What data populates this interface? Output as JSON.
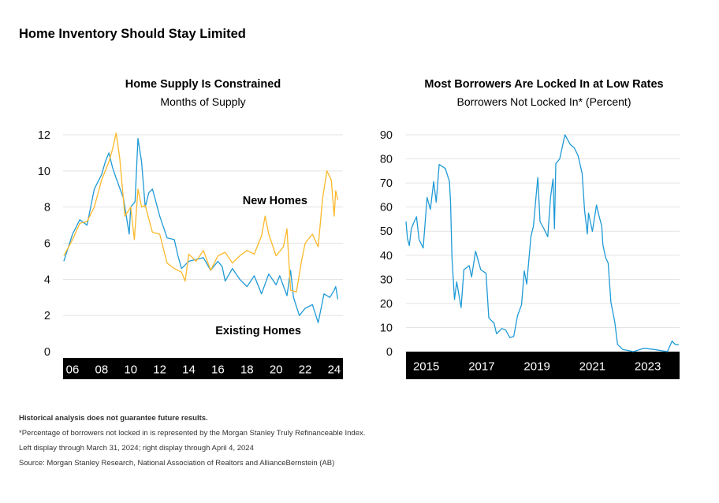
{
  "title": "Home Inventory Should Stay Limited",
  "colors": {
    "existing": "#1f9ad6",
    "new": "#fbb829",
    "axis_band": "#000000",
    "grid": "#e3e3e3"
  },
  "chart_data": [
    {
      "type": "line",
      "title": "Home Supply Is Constrained",
      "subtitle": "Months of Supply",
      "xlabel": "",
      "ylabel": "",
      "ylim": [
        0,
        12
      ],
      "xlim": [
        2005.35,
        2024.6
      ],
      "yticks": [
        "0",
        "2",
        "4",
        "6",
        "8",
        "10",
        "12"
      ],
      "xticks": [
        {
          "year": 2006,
          "label": "06"
        },
        {
          "year": 2008,
          "label": "08"
        },
        {
          "year": 2010,
          "label": "10"
        },
        {
          "year": 2012,
          "label": "12"
        },
        {
          "year": 2014,
          "label": "14"
        },
        {
          "year": 2016,
          "label": "16"
        },
        {
          "year": 2018,
          "label": "18"
        },
        {
          "year": 2020,
          "label": "20"
        },
        {
          "year": 2022,
          "label": "22"
        },
        {
          "year": 2024,
          "label": "24"
        }
      ],
      "grid": true,
      "annotations": [
        "New Homes",
        "Existing Homes"
      ],
      "series": [
        {
          "name": "Existing Homes",
          "color": "#1f9ad6",
          "x": [
            2005.4,
            2006,
            2006.5,
            2007,
            2007.5,
            2008,
            2008.25,
            2008.5,
            2008.75,
            2009,
            2009.5,
            2009.9,
            2010,
            2010.3,
            2010.5,
            2010.75,
            2011,
            2011.25,
            2011.5,
            2012,
            2012.5,
            2013,
            2013.25,
            2013.5,
            2014,
            2014.5,
            2015,
            2015.5,
            2016,
            2016.3,
            2016.5,
            2017,
            2017.5,
            2018,
            2018.5,
            2019,
            2019.5,
            2020,
            2020.25,
            2020.75,
            2021.0,
            2021.2,
            2021.6,
            2022,
            2022.5,
            2022.9,
            2023.3,
            2023.7,
            2024,
            2024.1,
            2024.25
          ],
          "y": [
            5.0,
            6.5,
            7.3,
            7.0,
            9.0,
            9.8,
            10.5,
            11.0,
            10.2,
            9.6,
            8.5,
            6.5,
            8.0,
            8.3,
            11.8,
            10.5,
            8.0,
            8.8,
            9.0,
            7.5,
            6.3,
            6.2,
            5.3,
            4.6,
            5.0,
            5.1,
            5.2,
            4.5,
            5.0,
            4.7,
            3.9,
            4.6,
            4.0,
            3.6,
            4.2,
            3.2,
            4.3,
            3.7,
            4.2,
            3.1,
            4.5,
            3.0,
            2.0,
            2.4,
            2.6,
            1.6,
            3.2,
            3.0,
            3.4,
            3.6,
            2.9
          ]
        },
        {
          "name": "New Homes",
          "color": "#fbb829",
          "x": [
            2005.4,
            2006,
            2006.5,
            2007,
            2007.5,
            2008,
            2008.5,
            2008.75,
            2009,
            2009.25,
            2009.6,
            2010,
            2010.25,
            2010.5,
            2010.75,
            2011,
            2011.5,
            2012,
            2012.5,
            2013,
            2013.5,
            2013.75,
            2014,
            2014.5,
            2015,
            2015.5,
            2016,
            2016.5,
            2017,
            2017.5,
            2018,
            2018.5,
            2019,
            2019.25,
            2019.5,
            2020,
            2020.5,
            2020.75,
            2021.0,
            2021.4,
            2021.75,
            2022,
            2022.5,
            2022.9,
            2023.2,
            2023.5,
            2023.8,
            2024,
            2024.1,
            2024.25
          ],
          "y": [
            5.3,
            6.2,
            7.1,
            7.2,
            8.0,
            9.5,
            10.5,
            11.2,
            12.1,
            10.7,
            7.5,
            8.0,
            6.2,
            9.0,
            8.0,
            8.1,
            6.6,
            6.5,
            4.9,
            4.6,
            4.4,
            3.9,
            5.4,
            5.0,
            5.6,
            4.5,
            5.3,
            5.5,
            4.9,
            5.3,
            5.6,
            5.4,
            6.4,
            7.5,
            6.5,
            5.3,
            5.8,
            6.8,
            3.4,
            3.3,
            5.0,
            6.0,
            6.5,
            5.8,
            8.5,
            10.0,
            9.5,
            7.5,
            8.9,
            8.4
          ]
        }
      ]
    },
    {
      "type": "line",
      "title": "Most Borrowers Are Locked In at Low Rates",
      "subtitle": "Borrowers Not Locked In* (Percent)",
      "xlabel": "",
      "ylabel": "",
      "ylim": [
        0,
        90
      ],
      "xlim": [
        2014.27,
        2024.15
      ],
      "yticks": [
        "0",
        "10",
        "20",
        "30",
        "40",
        "50",
        "60",
        "70",
        "80",
        "90"
      ],
      "xticks": [
        {
          "year": 2015,
          "label": "2015"
        },
        {
          "year": 2017,
          "label": "2017"
        },
        {
          "year": 2019,
          "label": "2019"
        },
        {
          "year": 2021,
          "label": "2021"
        },
        {
          "year": 2023,
          "label": "2023"
        }
      ],
      "grid": true,
      "series": [
        {
          "color": "#1f9ad6",
          "x": [
            2014.27,
            2014.32,
            2014.39,
            2014.46,
            2014.55,
            2014.65,
            2014.74,
            2014.89,
            2015.03,
            2015.15,
            2015.27,
            2015.36,
            2015.47,
            2015.69,
            2015.84,
            2015.88,
            2015.93,
            2016.02,
            2016.1,
            2016.21,
            2016.26,
            2016.36,
            2016.55,
            2016.64,
            2016.78,
            2016.97,
            2017.16,
            2017.26,
            2017.45,
            2017.54,
            2017.73,
            2017.87,
            2018.02,
            2018.16,
            2018.3,
            2018.44,
            2018.54,
            2018.63,
            2018.78,
            2018.87,
            2018.97,
            2019.03,
            2019.11,
            2019.25,
            2019.39,
            2019.49,
            2019.58,
            2019.63,
            2019.68,
            2019.82,
            2020.01,
            2020.2,
            2020.34,
            2020.48,
            2020.63,
            2020.72,
            2020.82,
            2020.86,
            2021.0,
            2021.15,
            2021.24,
            2021.34,
            2021.38,
            2021.48,
            2021.57,
            2021.67,
            2021.81,
            2021.91,
            2022.1,
            2022.48,
            2022.86,
            2023.24,
            2023.71,
            2023.88,
            2023.99,
            2024.12
          ],
          "y": [
            54,
            47,
            44,
            51,
            53.5,
            56,
            46.6,
            43,
            64,
            59,
            70.6,
            62,
            77.7,
            76,
            70.6,
            62,
            39,
            21.6,
            29,
            21.6,
            18.3,
            34,
            35.7,
            31,
            41.7,
            34,
            32.5,
            14,
            11.8,
            7.4,
            9.6,
            9,
            5.8,
            6.3,
            15,
            19.4,
            33.5,
            28,
            47.7,
            52,
            65,
            72.3,
            54,
            51,
            47.7,
            64,
            71.7,
            51,
            78,
            80,
            90,
            86,
            84.7,
            81.5,
            74,
            58.6,
            48.8,
            57.5,
            49.9,
            60.8,
            56.4,
            52,
            44.4,
            39,
            36.8,
            20.5,
            12.3,
            3,
            0.9,
            0,
            1.4,
            0.9,
            0,
            4.4,
            3,
            2.8
          ]
        }
      ]
    }
  ],
  "footnotes": {
    "disclaimer": "Historical analysis does not guarantee future results.",
    "note1": "*Percentage of borrowers not locked in is represented by the Morgan Stanley Truly Refinanceable Index.",
    "note2": "Left display through March 31, 2024; right display through April 4, 2024",
    "source": "Source: Morgan Stanley Research, National Association of Realtors and AllianceBernstein (AB)"
  }
}
